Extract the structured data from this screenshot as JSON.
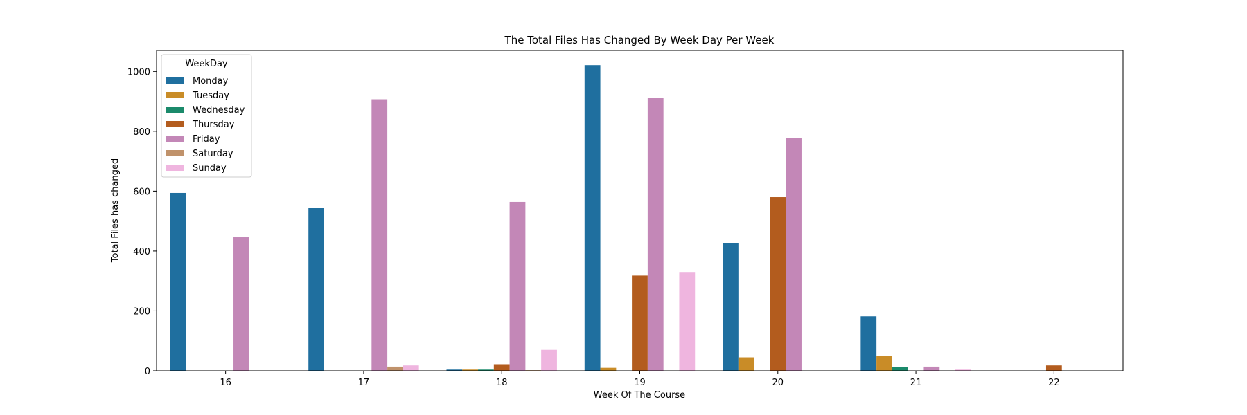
{
  "chart_data": {
    "type": "bar",
    "title": "The Total Files Has Changed By Week Day Per Week",
    "xlabel": "Week Of The Course",
    "ylabel": "Total Files has changed",
    "categories": [
      "16",
      "17",
      "18",
      "19",
      "20",
      "21",
      "22"
    ],
    "ylim": [
      0,
      1070
    ],
    "yticks": [
      0,
      200,
      400,
      600,
      800,
      1000
    ],
    "grid": false,
    "legend": {
      "title": "WeekDay",
      "placement": "top-left"
    },
    "series": [
      {
        "name": "Monday",
        "color": "#1f6f9f",
        "values": [
          594,
          544,
          4,
          1021,
          426,
          182,
          0
        ]
      },
      {
        "name": "Tuesday",
        "color": "#c98c27",
        "values": [
          0,
          0,
          4,
          10,
          45,
          50,
          0
        ]
      },
      {
        "name": "Wednesday",
        "color": "#1b8a6b",
        "values": [
          0,
          0,
          4,
          0,
          0,
          12,
          0
        ]
      },
      {
        "name": "Thursday",
        "color": "#b35c1e",
        "values": [
          0,
          0,
          22,
          318,
          580,
          0,
          18
        ]
      },
      {
        "name": "Friday",
        "color": "#c387b7",
        "values": [
          446,
          907,
          564,
          912,
          777,
          14,
          0
        ]
      },
      {
        "name": "Saturday",
        "color": "#c0926b",
        "values": [
          0,
          14,
          2,
          0,
          0,
          0,
          0
        ]
      },
      {
        "name": "Sunday",
        "color": "#efb5df",
        "values": [
          0,
          18,
          70,
          330,
          0,
          4,
          0
        ]
      }
    ]
  }
}
